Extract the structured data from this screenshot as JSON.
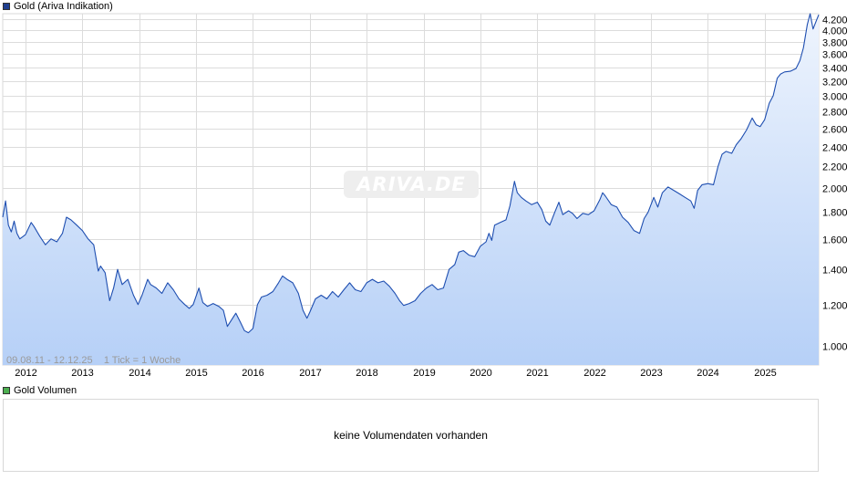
{
  "legend": {
    "main": "Gold (Ariva Indikation)",
    "volume": "Gold Volumen",
    "main_color": "#1f3f8f",
    "volume_color": "#4caf50"
  },
  "watermark": "ARIVA.DE",
  "range_note": "09.08.11 - 12.12.25    1 Tick = 1 Woche",
  "volume_message": "keine Volumendaten vorhanden",
  "chart_data": {
    "type": "area",
    "title": "Gold (Ariva Indikation)",
    "y_scale": "log",
    "ylim": [
      920,
      4300
    ],
    "y_ticks": [
      1000,
      1200,
      1400,
      1600,
      1800,
      2000,
      2200,
      2400,
      2600,
      2800,
      3000,
      3200,
      3400,
      3600,
      3800,
      4000,
      4200
    ],
    "y_tick_labels": [
      "1.000",
      "1.200",
      "1.400",
      "1.600",
      "1.800",
      "2.000",
      "2.200",
      "2.400",
      "2.600",
      "2.800",
      "3.000",
      "3.200",
      "3.400",
      "3.600",
      "3.800",
      "4.000",
      "4.200"
    ],
    "xlim": [
      2011.6,
      2025.95
    ],
    "x_ticks": [
      2012,
      2013,
      2014,
      2015,
      2016,
      2017,
      2018,
      2019,
      2020,
      2021,
      2022,
      2023,
      2024,
      2025
    ],
    "x_tick_labels": [
      "2012",
      "2013",
      "2014",
      "2015",
      "2016",
      "2017",
      "2018",
      "2019",
      "2020",
      "2021",
      "2022",
      "2023",
      "2024",
      "2025"
    ],
    "grid": true,
    "line_color": "#1e4eb0",
    "fill_top": "#eef4fd",
    "fill_bottom": "#b6d0f7",
    "series": [
      {
        "name": "Gold (Ariva Indikation)",
        "points": [
          [
            2011.6,
            1760
          ],
          [
            2011.65,
            1890
          ],
          [
            2011.7,
            1700
          ],
          [
            2011.75,
            1650
          ],
          [
            2011.8,
            1730
          ],
          [
            2011.85,
            1640
          ],
          [
            2011.9,
            1600
          ],
          [
            2012.0,
            1630
          ],
          [
            2012.1,
            1720
          ],
          [
            2012.15,
            1690
          ],
          [
            2012.25,
            1620
          ],
          [
            2012.35,
            1560
          ],
          [
            2012.45,
            1600
          ],
          [
            2012.55,
            1580
          ],
          [
            2012.65,
            1640
          ],
          [
            2012.72,
            1760
          ],
          [
            2012.8,
            1740
          ],
          [
            2012.9,
            1700
          ],
          [
            2013.0,
            1660
          ],
          [
            2013.1,
            1600
          ],
          [
            2013.2,
            1560
          ],
          [
            2013.28,
            1390
          ],
          [
            2013.32,
            1420
          ],
          [
            2013.4,
            1380
          ],
          [
            2013.48,
            1220
          ],
          [
            2013.55,
            1290
          ],
          [
            2013.62,
            1400
          ],
          [
            2013.7,
            1310
          ],
          [
            2013.8,
            1340
          ],
          [
            2013.9,
            1250
          ],
          [
            2013.98,
            1200
          ],
          [
            2014.05,
            1250
          ],
          [
            2014.15,
            1340
          ],
          [
            2014.2,
            1310
          ],
          [
            2014.3,
            1290
          ],
          [
            2014.4,
            1260
          ],
          [
            2014.5,
            1320
          ],
          [
            2014.6,
            1280
          ],
          [
            2014.7,
            1230
          ],
          [
            2014.8,
            1200
          ],
          [
            2014.88,
            1180
          ],
          [
            2014.95,
            1200
          ],
          [
            2015.05,
            1290
          ],
          [
            2015.12,
            1210
          ],
          [
            2015.2,
            1190
          ],
          [
            2015.3,
            1205
          ],
          [
            2015.4,
            1190
          ],
          [
            2015.48,
            1170
          ],
          [
            2015.55,
            1090
          ],
          [
            2015.62,
            1120
          ],
          [
            2015.7,
            1155
          ],
          [
            2015.78,
            1110
          ],
          [
            2015.85,
            1070
          ],
          [
            2015.92,
            1060
          ],
          [
            2016.0,
            1080
          ],
          [
            2016.08,
            1200
          ],
          [
            2016.15,
            1240
          ],
          [
            2016.25,
            1250
          ],
          [
            2016.35,
            1270
          ],
          [
            2016.45,
            1320
          ],
          [
            2016.52,
            1360
          ],
          [
            2016.6,
            1340
          ],
          [
            2016.7,
            1320
          ],
          [
            2016.8,
            1260
          ],
          [
            2016.88,
            1170
          ],
          [
            2016.95,
            1130
          ],
          [
            2017.0,
            1160
          ],
          [
            2017.1,
            1230
          ],
          [
            2017.2,
            1250
          ],
          [
            2017.3,
            1230
          ],
          [
            2017.4,
            1270
          ],
          [
            2017.5,
            1240
          ],
          [
            2017.6,
            1280
          ],
          [
            2017.7,
            1320
          ],
          [
            2017.8,
            1280
          ],
          [
            2017.9,
            1270
          ],
          [
            2018.0,
            1320
          ],
          [
            2018.1,
            1340
          ],
          [
            2018.2,
            1320
          ],
          [
            2018.3,
            1330
          ],
          [
            2018.4,
            1300
          ],
          [
            2018.5,
            1260
          ],
          [
            2018.58,
            1220
          ],
          [
            2018.65,
            1195
          ],
          [
            2018.75,
            1205
          ],
          [
            2018.85,
            1220
          ],
          [
            2018.95,
            1260
          ],
          [
            2019.05,
            1290
          ],
          [
            2019.15,
            1310
          ],
          [
            2019.25,
            1280
          ],
          [
            2019.35,
            1290
          ],
          [
            2019.45,
            1400
          ],
          [
            2019.55,
            1430
          ],
          [
            2019.62,
            1510
          ],
          [
            2019.7,
            1520
          ],
          [
            2019.8,
            1490
          ],
          [
            2019.9,
            1480
          ],
          [
            2020.0,
            1550
          ],
          [
            2020.1,
            1580
          ],
          [
            2020.15,
            1640
          ],
          [
            2020.2,
            1590
          ],
          [
            2020.25,
            1700
          ],
          [
            2020.35,
            1720
          ],
          [
            2020.45,
            1740
          ],
          [
            2020.52,
            1850
          ],
          [
            2020.6,
            2060
          ],
          [
            2020.65,
            1960
          ],
          [
            2020.72,
            1920
          ],
          [
            2020.8,
            1890
          ],
          [
            2020.9,
            1860
          ],
          [
            2021.0,
            1880
          ],
          [
            2021.08,
            1820
          ],
          [
            2021.15,
            1730
          ],
          [
            2021.22,
            1700
          ],
          [
            2021.3,
            1790
          ],
          [
            2021.38,
            1880
          ],
          [
            2021.45,
            1780
          ],
          [
            2021.55,
            1810
          ],
          [
            2021.62,
            1790
          ],
          [
            2021.7,
            1750
          ],
          [
            2021.8,
            1790
          ],
          [
            2021.9,
            1780
          ],
          [
            2022.0,
            1810
          ],
          [
            2022.1,
            1900
          ],
          [
            2022.15,
            1960
          ],
          [
            2022.2,
            1930
          ],
          [
            2022.3,
            1860
          ],
          [
            2022.4,
            1840
          ],
          [
            2022.5,
            1760
          ],
          [
            2022.6,
            1720
          ],
          [
            2022.7,
            1660
          ],
          [
            2022.8,
            1640
          ],
          [
            2022.88,
            1750
          ],
          [
            2022.95,
            1800
          ],
          [
            2023.05,
            1920
          ],
          [
            2023.12,
            1840
          ],
          [
            2023.2,
            1960
          ],
          [
            2023.3,
            2010
          ],
          [
            2023.4,
            1980
          ],
          [
            2023.5,
            1950
          ],
          [
            2023.6,
            1920
          ],
          [
            2023.7,
            1890
          ],
          [
            2023.76,
            1830
          ],
          [
            2023.82,
            1980
          ],
          [
            2023.9,
            2030
          ],
          [
            2024.0,
            2040
          ],
          [
            2024.1,
            2030
          ],
          [
            2024.18,
            2200
          ],
          [
            2024.25,
            2320
          ],
          [
            2024.32,
            2350
          ],
          [
            2024.42,
            2330
          ],
          [
            2024.5,
            2420
          ],
          [
            2024.58,
            2480
          ],
          [
            2024.68,
            2580
          ],
          [
            2024.78,
            2720
          ],
          [
            2024.85,
            2640
          ],
          [
            2024.92,
            2620
          ],
          [
            2025.0,
            2700
          ],
          [
            2025.08,
            2900
          ],
          [
            2025.15,
            3000
          ],
          [
            2025.22,
            3240
          ],
          [
            2025.28,
            3300
          ],
          [
            2025.35,
            3330
          ],
          [
            2025.45,
            3340
          ],
          [
            2025.55,
            3380
          ],
          [
            2025.62,
            3500
          ],
          [
            2025.68,
            3700
          ],
          [
            2025.75,
            4100
          ],
          [
            2025.8,
            4300
          ],
          [
            2025.85,
            4020
          ],
          [
            2025.9,
            4150
          ],
          [
            2025.95,
            4280
          ]
        ]
      }
    ]
  }
}
